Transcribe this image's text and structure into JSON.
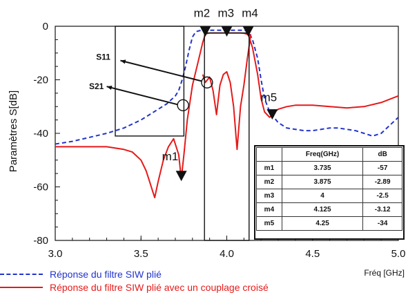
{
  "chart_data": {
    "type": "line",
    "ylabel": "Paramètres S[dB]",
    "xlabel": "Fréq [GHz]",
    "xlim": [
      3.0,
      5.0
    ],
    "ylim": [
      -80,
      0
    ],
    "xticks": [
      "3.0",
      "3.5",
      "4.0",
      "4.5",
      "5.0"
    ],
    "yticks": [
      "0",
      "-20",
      "-40",
      "-60",
      "-80"
    ],
    "grid": false,
    "legend_position": "bottom-left, below plot",
    "series": [
      {
        "name": "Réponse du filtre SIW plié",
        "color": "#2233cc",
        "style": "dashed",
        "x": [
          3.0,
          3.1,
          3.2,
          3.3,
          3.4,
          3.5,
          3.55,
          3.6,
          3.65,
          3.7,
          3.72,
          3.74,
          3.76,
          3.78,
          3.8,
          3.82,
          3.85,
          3.875,
          3.9,
          3.92,
          3.95,
          3.97,
          4.0,
          4.03,
          4.05,
          4.08,
          4.1,
          4.125,
          4.15,
          4.18,
          4.2,
          4.22,
          4.25,
          4.3,
          4.35,
          4.4,
          4.45,
          4.5,
          4.55,
          4.6,
          4.65,
          4.7,
          4.75,
          4.8,
          4.85,
          4.9,
          4.95,
          5.0
        ],
        "values": [
          -44,
          -43,
          -41.5,
          -40,
          -38,
          -35,
          -33,
          -31,
          -29,
          -26,
          -24,
          -20,
          -15,
          -9,
          -4,
          -2,
          -1.5,
          -1.5,
          -1.5,
          -1.5,
          -1.5,
          -1.5,
          -1.5,
          -1.5,
          -1.5,
          -1.5,
          -1.5,
          -1.8,
          -5,
          -12,
          -20,
          -27,
          -32,
          -36,
          -38,
          -38.5,
          -39,
          -39,
          -38.5,
          -38,
          -38,
          -38.5,
          -39,
          -40,
          -41,
          -40,
          -37,
          -34
        ]
      },
      {
        "name": "Réponse du filtre SIW plié avec un couplage croisé",
        "color": "#e61919",
        "style": "solid",
        "x": [
          3.0,
          3.1,
          3.2,
          3.3,
          3.4,
          3.45,
          3.5,
          3.53,
          3.55,
          3.57,
          3.58,
          3.6,
          3.63,
          3.66,
          3.69,
          3.72,
          3.735,
          3.75,
          3.77,
          3.8,
          3.83,
          3.86,
          3.875,
          3.9,
          3.92,
          3.94,
          3.95,
          3.97,
          4.0,
          4.02,
          4.04,
          4.06,
          4.08,
          4.1,
          4.125,
          4.15,
          4.18,
          4.2,
          4.22,
          4.25,
          4.28,
          4.3,
          4.35,
          4.4,
          4.5,
          4.6,
          4.7,
          4.8,
          4.9,
          5.0
        ],
        "values": [
          -45,
          -45,
          -45,
          -45,
          -46,
          -47,
          -50,
          -54,
          -58,
          -62,
          -64,
          -58,
          -50,
          -45,
          -42,
          -48,
          -57,
          -48,
          -35,
          -22,
          -14,
          -6,
          -2.89,
          -2.5,
          -2.5,
          -2.5,
          -2.5,
          -2.5,
          -2.5,
          -2.5,
          -2.5,
          -2.5,
          -2.5,
          -2.6,
          -3.12,
          -8,
          -18,
          -27,
          -32,
          -34,
          -32,
          -31,
          -30,
          -29.5,
          -29.5,
          -30,
          -30.5,
          -30,
          -28.5,
          -26
        ]
      },
      {
        "name": "",
        "color": "#e61919",
        "style": "solid",
        "x": [
          3.86,
          3.875,
          3.9,
          3.92,
          3.94,
          3.96,
          3.98,
          4.0,
          4.02,
          4.04,
          4.06,
          4.08,
          4.1,
          4.12,
          4.14
        ],
        "values": [
          -18,
          -21,
          -19,
          -24,
          -33,
          -22,
          -18,
          -17,
          -21,
          -30,
          -46,
          -30,
          -22,
          -12,
          -3
        ]
      }
    ],
    "markers": [
      {
        "label": "m1",
        "freq": 3.735,
        "db": -57
      },
      {
        "label": "m2",
        "freq": 3.875,
        "db": -2.89
      },
      {
        "label": "m3",
        "freq": 4,
        "db": -2.5
      },
      {
        "label": "m4",
        "freq": 4.125,
        "db": -3.12
      },
      {
        "label": "m5",
        "freq": 4.25,
        "db": -34
      }
    ],
    "annotations": [
      {
        "text": "S11",
        "freq": 3.91,
        "db": -21
      },
      {
        "text": "S21",
        "freq": 3.75,
        "db": -30
      }
    ],
    "table": {
      "headers": [
        "",
        "Freq(GHz)",
        "dB"
      ],
      "rows": [
        [
          "m1",
          "3.735",
          "-57"
        ],
        [
          "m2",
          "3.875",
          "-2.89"
        ],
        [
          "m3",
          "4",
          "-2.5"
        ],
        [
          "m4",
          "4.125",
          "-3.12"
        ],
        [
          "m5",
          "4.25",
          "-34"
        ]
      ]
    }
  }
}
